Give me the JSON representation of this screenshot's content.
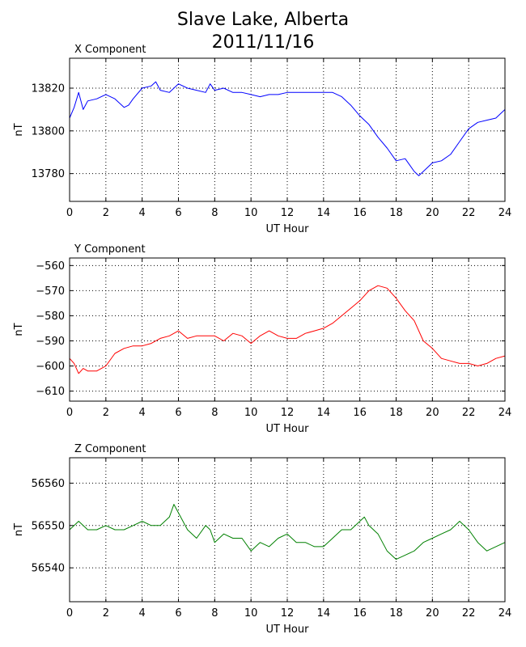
{
  "figure": {
    "title_line1": "Slave Lake, Alberta",
    "title_line2": "2011/11/16"
  },
  "chart_data": [
    {
      "type": "line",
      "title": "X Component",
      "xlabel": "UT Hour",
      "ylabel": "nT",
      "xlim": [
        0,
        24
      ],
      "ylim": [
        13767,
        13834
      ],
      "xticks": [
        0,
        2,
        4,
        6,
        8,
        10,
        12,
        14,
        16,
        18,
        20,
        22,
        24
      ],
      "yticks": [
        13780,
        13800,
        13820
      ],
      "grid": true,
      "color": "#0000ff",
      "x": [
        0,
        0.25,
        0.5,
        0.75,
        1,
        1.5,
        2,
        2.5,
        3,
        3.25,
        3.5,
        4,
        4.5,
        4.75,
        5,
        5.5,
        6,
        6.5,
        7,
        7.5,
        7.75,
        8,
        8.5,
        9,
        9.5,
        10,
        10.5,
        11,
        11.5,
        12,
        12.5,
        13,
        13.5,
        14,
        14.5,
        15,
        15.5,
        16,
        16.5,
        17,
        17.5,
        18,
        18.5,
        19,
        19.25,
        19.5,
        20,
        20.5,
        21,
        21.5,
        22,
        22.5,
        23,
        23.5,
        24
      ],
      "values": [
        13806,
        13811,
        13818,
        13810,
        13814,
        13815,
        13817,
        13815,
        13811,
        13812,
        13815,
        13820,
        13821,
        13823,
        13819,
        13818,
        13822,
        13820,
        13819,
        13818,
        13822,
        13819,
        13820,
        13818,
        13818,
        13817,
        13816,
        13817,
        13817,
        13818,
        13818,
        13818,
        13818,
        13818,
        13818,
        13816,
        13812,
        13807,
        13803,
        13797,
        13792,
        13786,
        13787,
        13781,
        13779,
        13781,
        13785,
        13786,
        13789,
        13795,
        13801,
        13804,
        13805,
        13806,
        13810
      ]
    },
    {
      "type": "line",
      "title": "Y Component",
      "xlabel": "UT Hour",
      "ylabel": "nT",
      "xlim": [
        0,
        24
      ],
      "ylim": [
        -614,
        -557
      ],
      "xticks": [
        0,
        2,
        4,
        6,
        8,
        10,
        12,
        14,
        16,
        18,
        20,
        22,
        24
      ],
      "yticks": [
        -560,
        -570,
        -580,
        -590,
        -600,
        -610
      ],
      "grid": true,
      "color": "#ff0000",
      "x": [
        0,
        0.25,
        0.5,
        0.75,
        1,
        1.5,
        2,
        2.5,
        3,
        3.5,
        4,
        4.5,
        5,
        5.5,
        6,
        6.5,
        7,
        7.5,
        8,
        8.5,
        9,
        9.5,
        10,
        10.5,
        11,
        11.5,
        12,
        12.5,
        13,
        13.5,
        14,
        14.5,
        15,
        15.5,
        16,
        16.5,
        17,
        17.5,
        18,
        18.5,
        19,
        19.5,
        20,
        20.5,
        21,
        21.5,
        22,
        22.5,
        23,
        23.5,
        24
      ],
      "values": [
        -597,
        -599,
        -603,
        -601,
        -602,
        -602,
        -600,
        -595,
        -593,
        -592,
        -592,
        -591,
        -589,
        -588,
        -586,
        -589,
        -588,
        -588,
        -588,
        -590,
        -587,
        -588,
        -591,
        -588,
        -586,
        -588,
        -589,
        -589,
        -587,
        -586,
        -585,
        -583,
        -580,
        -577,
        -574,
        -570,
        -568,
        -569,
        -573,
        -578,
        -582,
        -590,
        -593,
        -597,
        -598,
        -599,
        -599,
        -600,
        -599,
        -597,
        -596
      ]
    },
    {
      "type": "line",
      "title": "Z Component",
      "xlabel": "UT Hour",
      "ylabel": "nT",
      "xlim": [
        0,
        24
      ],
      "ylim": [
        56532,
        56566
      ],
      "xticks": [
        0,
        2,
        4,
        6,
        8,
        10,
        12,
        14,
        16,
        18,
        20,
        22,
        24
      ],
      "yticks": [
        56540,
        56550,
        56560
      ],
      "grid": true,
      "color": "#008000",
      "x": [
        0,
        0.25,
        0.5,
        0.75,
        1,
        1.5,
        2,
        2.5,
        3,
        3.5,
        4,
        4.5,
        5,
        5.5,
        5.75,
        6,
        6.5,
        7,
        7.5,
        7.75,
        8,
        8.5,
        9,
        9.5,
        10,
        10.5,
        11,
        11.5,
        12,
        12.5,
        13,
        13.5,
        14,
        14.5,
        15,
        15.5,
        16,
        16.25,
        16.5,
        17,
        17.5,
        18,
        18.5,
        19,
        19.5,
        20,
        20.5,
        21,
        21.5,
        22,
        22.5,
        23,
        23.5,
        24
      ],
      "values": [
        56549,
        56550,
        56551,
        56550,
        56549,
        56549,
        56550,
        56549,
        56549,
        56550,
        56551,
        56550,
        56550,
        56552,
        56555,
        56553,
        56549,
        56547,
        56550,
        56549,
        56546,
        56548,
        56547,
        56547,
        56544,
        56546,
        56545,
        56547,
        56548,
        56546,
        56546,
        56545,
        56545,
        56547,
        56549,
        56549,
        56551,
        56552,
        56550,
        56548,
        56544,
        56542,
        56543,
        56544,
        56546,
        56547,
        56548,
        56549,
        56551,
        56549,
        56546,
        56544,
        56545,
        56546
      ]
    }
  ]
}
